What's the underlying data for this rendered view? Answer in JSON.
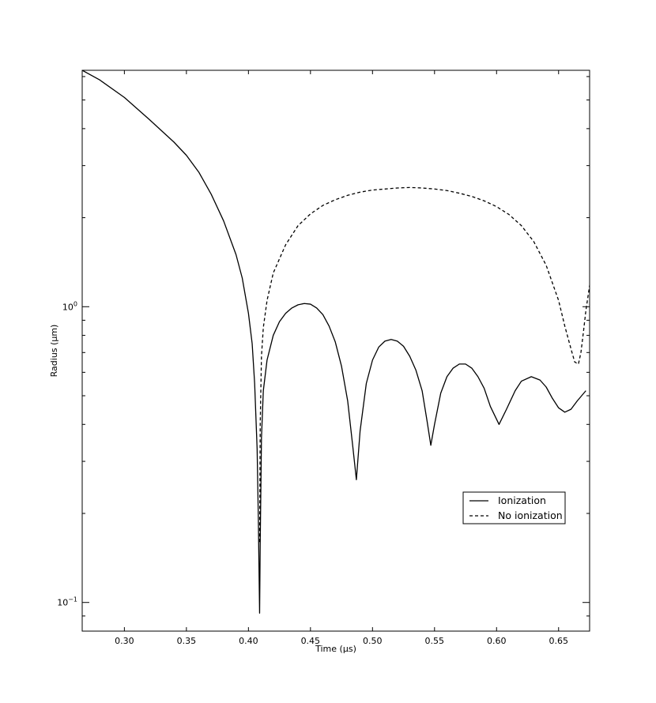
{
  "chart_data": {
    "type": "line",
    "title": "",
    "xlabel": "Time (µs)",
    "ylabel": "Radius (µm)",
    "xlim": [
      0.266,
      0.675
    ],
    "ylim": [
      0.08,
      6.3
    ],
    "yscale": "log",
    "grid": false,
    "legend_position": "lower-right",
    "x_ticks": [
      0.3,
      0.35,
      0.4,
      0.45,
      0.5,
      0.55,
      0.6,
      0.65
    ],
    "x_tick_labels": [
      "0.30",
      "0.35",
      "0.40",
      "0.45",
      "0.50",
      "0.55",
      "0.60",
      "0.65"
    ],
    "y_major_ticks": [
      0.1,
      1
    ],
    "y_major_tick_labels": [
      {
        "base": "10",
        "exp": "−1"
      },
      {
        "base": "10",
        "exp": "0"
      }
    ],
    "series": [
      {
        "name": "Ionization",
        "style": "solid",
        "color": "#000000",
        "points": [
          [
            0.266,
            6.3
          ],
          [
            0.28,
            5.85
          ],
          [
            0.3,
            5.1
          ],
          [
            0.32,
            4.3
          ],
          [
            0.34,
            3.6
          ],
          [
            0.35,
            3.25
          ],
          [
            0.36,
            2.85
          ],
          [
            0.37,
            2.4
          ],
          [
            0.38,
            1.95
          ],
          [
            0.39,
            1.5
          ],
          [
            0.395,
            1.25
          ],
          [
            0.4,
            0.95
          ],
          [
            0.403,
            0.75
          ],
          [
            0.405,
            0.55
          ],
          [
            0.407,
            0.33
          ],
          [
            0.408,
            0.19
          ],
          [
            0.409,
            0.092
          ],
          [
            0.4095,
            0.16
          ],
          [
            0.4105,
            0.36
          ],
          [
            0.412,
            0.52
          ],
          [
            0.415,
            0.66
          ],
          [
            0.42,
            0.8
          ],
          [
            0.425,
            0.89
          ],
          [
            0.43,
            0.95
          ],
          [
            0.435,
            0.99
          ],
          [
            0.44,
            1.015
          ],
          [
            0.445,
            1.025
          ],
          [
            0.45,
            1.02
          ],
          [
            0.455,
            0.99
          ],
          [
            0.46,
            0.94
          ],
          [
            0.465,
            0.86
          ],
          [
            0.47,
            0.76
          ],
          [
            0.475,
            0.63
          ],
          [
            0.48,
            0.48
          ],
          [
            0.484,
            0.34
          ],
          [
            0.487,
            0.26
          ],
          [
            0.49,
            0.38
          ],
          [
            0.495,
            0.55
          ],
          [
            0.5,
            0.66
          ],
          [
            0.505,
            0.73
          ],
          [
            0.51,
            0.765
          ],
          [
            0.515,
            0.775
          ],
          [
            0.52,
            0.765
          ],
          [
            0.525,
            0.735
          ],
          [
            0.53,
            0.68
          ],
          [
            0.535,
            0.61
          ],
          [
            0.54,
            0.52
          ],
          [
            0.544,
            0.41
          ],
          [
            0.547,
            0.34
          ],
          [
            0.55,
            0.4
          ],
          [
            0.555,
            0.51
          ],
          [
            0.56,
            0.58
          ],
          [
            0.565,
            0.62
          ],
          [
            0.57,
            0.64
          ],
          [
            0.575,
            0.64
          ],
          [
            0.58,
            0.62
          ],
          [
            0.585,
            0.58
          ],
          [
            0.59,
            0.53
          ],
          [
            0.595,
            0.46
          ],
          [
            0.602,
            0.4
          ],
          [
            0.608,
            0.45
          ],
          [
            0.615,
            0.52
          ],
          [
            0.62,
            0.56
          ],
          [
            0.628,
            0.58
          ],
          [
            0.635,
            0.565
          ],
          [
            0.64,
            0.535
          ],
          [
            0.645,
            0.49
          ],
          [
            0.65,
            0.455
          ],
          [
            0.655,
            0.44
          ],
          [
            0.66,
            0.45
          ],
          [
            0.665,
            0.48
          ],
          [
            0.672,
            0.52
          ]
        ]
      },
      {
        "name": "No ionization",
        "style": "dashed",
        "color": "#000000",
        "points": [
          [
            0.409,
            0.16
          ],
          [
            0.4095,
            0.4
          ],
          [
            0.4105,
            0.68
          ],
          [
            0.412,
            0.85
          ],
          [
            0.415,
            1.05
          ],
          [
            0.42,
            1.3
          ],
          [
            0.43,
            1.62
          ],
          [
            0.44,
            1.88
          ],
          [
            0.45,
            2.06
          ],
          [
            0.46,
            2.2
          ],
          [
            0.47,
            2.3
          ],
          [
            0.48,
            2.38
          ],
          [
            0.49,
            2.44
          ],
          [
            0.5,
            2.48
          ],
          [
            0.51,
            2.5
          ],
          [
            0.52,
            2.52
          ],
          [
            0.53,
            2.53
          ],
          [
            0.54,
            2.52
          ],
          [
            0.55,
            2.5
          ],
          [
            0.56,
            2.47
          ],
          [
            0.57,
            2.42
          ],
          [
            0.58,
            2.36
          ],
          [
            0.59,
            2.28
          ],
          [
            0.6,
            2.18
          ],
          [
            0.61,
            2.05
          ],
          [
            0.62,
            1.88
          ],
          [
            0.63,
            1.66
          ],
          [
            0.64,
            1.38
          ],
          [
            0.65,
            1.05
          ],
          [
            0.655,
            0.86
          ],
          [
            0.66,
            0.72
          ],
          [
            0.663,
            0.65
          ],
          [
            0.666,
            0.64
          ],
          [
            0.668,
            0.7
          ],
          [
            0.67,
            0.82
          ],
          [
            0.672,
            0.97
          ],
          [
            0.675,
            1.18
          ]
        ]
      }
    ]
  }
}
